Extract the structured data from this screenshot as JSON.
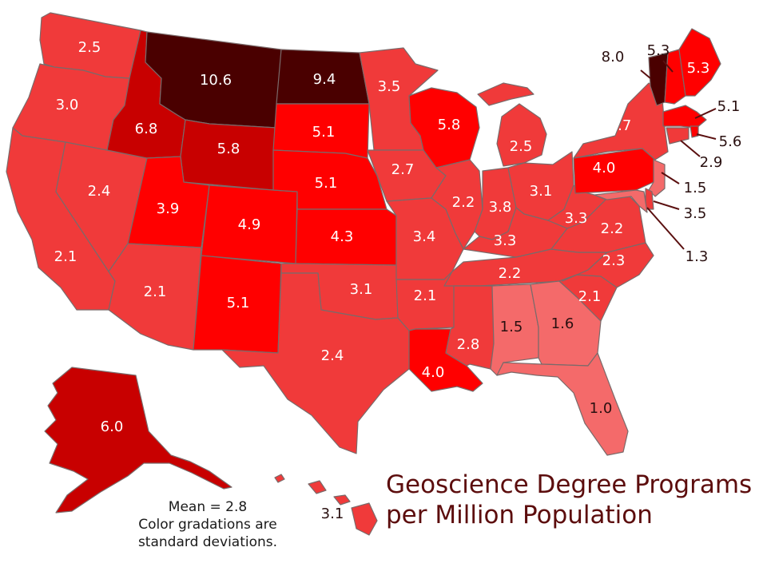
{
  "title_line1": "Geoscience Degree Programs",
  "title_line2": "per Million Population",
  "note_line1": "Mean = 2.8",
  "note_line2": "Color gradations are",
  "note_line3": "standard deviations.",
  "colors": {
    "c0": "#f46a6a",
    "c1": "#f03a3a",
    "c2": "#ff0000",
    "c3": "#c80000",
    "c4": "#4a0000",
    "border": "#7a6a6a",
    "title": "#5c0d0d"
  },
  "states": [
    {
      "id": "WA",
      "value": "2.5",
      "color": "c1"
    },
    {
      "id": "OR",
      "value": "3.0",
      "color": "c1"
    },
    {
      "id": "CA",
      "value": "2.1",
      "color": "c1"
    },
    {
      "id": "NV",
      "value": "2.4",
      "color": "c1"
    },
    {
      "id": "ID",
      "value": "6.8",
      "color": "c3"
    },
    {
      "id": "MT",
      "value": "10.6",
      "color": "c4"
    },
    {
      "id": "WY",
      "value": "5.8",
      "color": "c3"
    },
    {
      "id": "UT",
      "value": "3.9",
      "color": "c2"
    },
    {
      "id": "AZ",
      "value": "2.1",
      "color": "c1"
    },
    {
      "id": "CO",
      "value": "4.9",
      "color": "c2"
    },
    {
      "id": "NM",
      "value": "5.1",
      "color": "c2"
    },
    {
      "id": "ND",
      "value": "9.4",
      "color": "c4"
    },
    {
      "id": "SD",
      "value": "5.1",
      "color": "c2"
    },
    {
      "id": "NE",
      "value": "5.1",
      "color": "c2"
    },
    {
      "id": "KS",
      "value": "4.3",
      "color": "c2"
    },
    {
      "id": "OK",
      "value": "3.1",
      "color": "c1"
    },
    {
      "id": "TX",
      "value": "2.4",
      "color": "c1"
    },
    {
      "id": "MN",
      "value": "3.5",
      "color": "c1"
    },
    {
      "id": "IA",
      "value": "2.7",
      "color": "c1"
    },
    {
      "id": "MO",
      "value": "3.4",
      "color": "c1"
    },
    {
      "id": "AR",
      "value": "2.1",
      "color": "c1"
    },
    {
      "id": "LA",
      "value": "4.0",
      "color": "c2"
    },
    {
      "id": "WI",
      "value": "5.8",
      "color": "c2"
    },
    {
      "id": "IL",
      "value": "2.2",
      "color": "c1"
    },
    {
      "id": "MI",
      "value": "2.5",
      "color": "c1"
    },
    {
      "id": "IN",
      "value": "3.8",
      "color": "c1"
    },
    {
      "id": "OH",
      "value": "3.1",
      "color": "c1"
    },
    {
      "id": "KY",
      "value": "3.3",
      "color": "c1"
    },
    {
      "id": "TN",
      "value": "2.2",
      "color": "c1"
    },
    {
      "id": "MS",
      "value": "2.8",
      "color": "c1"
    },
    {
      "id": "AL",
      "value": "1.5",
      "color": "c0"
    },
    {
      "id": "GA",
      "value": "1.6",
      "color": "c0"
    },
    {
      "id": "FL",
      "value": "1.0",
      "color": "c0"
    },
    {
      "id": "SC",
      "value": "2.1",
      "color": "c1"
    },
    {
      "id": "NC",
      "value": "2.3",
      "color": "c1"
    },
    {
      "id": "VA",
      "value": "2.2",
      "color": "c1"
    },
    {
      "id": "WV",
      "value": "3.3",
      "color": "c1"
    },
    {
      "id": "PA",
      "value": "4.0",
      "color": "c2"
    },
    {
      "id": "NY",
      "value": "3.7",
      "color": "c1"
    },
    {
      "id": "VT",
      "value": "8.0",
      "color": "c4"
    },
    {
      "id": "NH",
      "value": "5.3",
      "color": "c2"
    },
    {
      "id": "ME",
      "value": "5.3",
      "color": "c2"
    },
    {
      "id": "MA",
      "value": "5.1",
      "color": "c2"
    },
    {
      "id": "RI",
      "value": "5.6",
      "color": "c2"
    },
    {
      "id": "CT",
      "value": "2.9",
      "color": "c1"
    },
    {
      "id": "NJ",
      "value": "1.5",
      "color": "c0"
    },
    {
      "id": "DE",
      "value": "3.5",
      "color": "c1"
    },
    {
      "id": "MD",
      "value": "1.3",
      "color": "c0"
    },
    {
      "id": "AK",
      "value": "6.0",
      "color": "c3"
    },
    {
      "id": "HI",
      "value": "3.1",
      "color": "c1"
    }
  ]
}
